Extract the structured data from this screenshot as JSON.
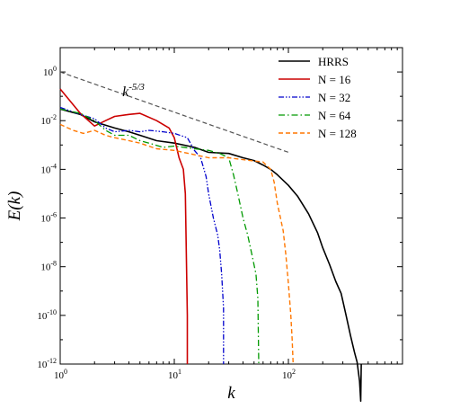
{
  "chart_data": {
    "type": "line",
    "title": "",
    "xlabel": "k",
    "ylabel": "E(k)",
    "x_scale": "log",
    "y_scale": "log",
    "xlim": [
      1,
      1000
    ],
    "ylim": [
      1e-12,
      10
    ],
    "grid": false,
    "legend_position": "top-right",
    "x_ticks": [
      {
        "value": 1,
        "base": "10",
        "exp": "0"
      },
      {
        "value": 10,
        "base": "10",
        "exp": "1"
      },
      {
        "value": 100,
        "base": "10",
        "exp": "2"
      }
    ],
    "y_ticks": [
      {
        "value": 1,
        "base": "10",
        "exp": "0"
      },
      {
        "value": 0.01,
        "base": "10",
        "exp": "-2"
      },
      {
        "value": 0.0001,
        "base": "10",
        "exp": "-4"
      },
      {
        "value": 1e-06,
        "base": "10",
        "exp": "-6"
      },
      {
        "value": 1e-08,
        "base": "10",
        "exp": "-8"
      },
      {
        "value": 1e-10,
        "base": "10",
        "exp": "-10"
      },
      {
        "value": 1e-12,
        "base": "10",
        "exp": "-12"
      }
    ],
    "annotation": {
      "base": "k",
      "exp": "-5/3",
      "x": 3.5,
      "y": 0.1
    },
    "reference_line": {
      "x": [
        1,
        100
      ],
      "y": [
        1.0,
        0.0005
      ],
      "color": "#555555",
      "dash": "5,3"
    },
    "series": [
      {
        "name": "HRRS",
        "color": "#000000",
        "dash": "",
        "width": 1.6,
        "x": [
          1,
          1.5,
          2,
          3,
          4,
          5,
          7,
          10,
          15,
          20,
          30,
          40,
          50,
          60,
          70,
          80,
          100,
          120,
          150,
          180,
          200,
          230,
          260,
          290,
          320,
          350,
          380,
          400,
          420,
          430,
          435
        ],
        "y": [
          0.03,
          0.018,
          0.009,
          0.005,
          0.0035,
          0.0025,
          0.0015,
          0.0012,
          0.0008,
          0.0005,
          0.00045,
          0.0003,
          0.00023,
          0.00015,
          0.0001,
          6e-05,
          2.2e-05,
          8e-06,
          1.5e-06,
          2.5e-07,
          6e-08,
          1.2e-08,
          2.5e-09,
          8e-10,
          1e-10,
          1.5e-11,
          3e-12,
          1.2e-12,
          2e-13,
          3e-14,
          1e-12
        ]
      },
      {
        "name": "N = 16",
        "color": "#cc0000",
        "dash": "",
        "width": 1.6,
        "x": [
          1,
          1.5,
          2,
          2.5,
          3,
          4,
          5,
          7,
          9,
          10,
          11,
          12,
          12.5,
          13,
          13
        ],
        "y": [
          0.2,
          0.02,
          0.006,
          0.01,
          0.015,
          0.018,
          0.02,
          0.01,
          0.005,
          0.002,
          0.0003,
          0.0001,
          1e-05,
          1e-10,
          1e-12
        ]
      },
      {
        "name": "N = 32",
        "color": "#0000cc",
        "dash": "6,2,1.5,2,1.5,2",
        "width": 1.3,
        "x": [
          1,
          1.5,
          2,
          2.5,
          3,
          4,
          5,
          6,
          8,
          10,
          13,
          15,
          17,
          19,
          20,
          22,
          24,
          25,
          26,
          27,
          27
        ],
        "y": [
          0.035,
          0.018,
          0.012,
          0.005,
          0.0035,
          0.004,
          0.0035,
          0.004,
          0.0035,
          0.003,
          0.002,
          0.0006,
          0.0003,
          5e-05,
          1e-05,
          1e-06,
          2e-07,
          5e-08,
          5e-09,
          2e-10,
          1e-12
        ]
      },
      {
        "name": "N = 64",
        "color": "#009900",
        "dash": "7,3,1.5,3",
        "width": 1.3,
        "x": [
          1,
          1.5,
          2,
          2.5,
          3,
          4,
          5,
          6,
          8,
          10,
          15,
          20,
          25,
          30,
          33,
          36,
          40,
          44,
          48,
          52,
          54,
          55
        ],
        "y": [
          0.03,
          0.02,
          0.01,
          0.004,
          0.0025,
          0.0025,
          0.0015,
          0.0012,
          0.0008,
          0.0009,
          0.0007,
          0.0006,
          0.00045,
          0.0003,
          6e-05,
          1e-05,
          1e-06,
          2e-07,
          3e-08,
          5e-09,
          5e-10,
          1e-12
        ]
      },
      {
        "name": "N = 128",
        "color": "#ff7700",
        "dash": "5,3",
        "width": 1.4,
        "x": [
          1,
          1.3,
          1.6,
          2,
          2.5,
          3,
          4,
          5,
          7,
          10,
          15,
          20,
          30,
          40,
          50,
          60,
          70,
          75,
          80,
          90,
          95,
          100,
          105,
          108,
          110
        ],
        "y": [
          0.007,
          0.004,
          0.003,
          0.004,
          0.0025,
          0.002,
          0.0015,
          0.0012,
          0.0007,
          0.0006,
          0.0004,
          0.0003,
          0.0003,
          0.00025,
          0.00022,
          0.0002,
          0.0001,
          3e-05,
          4e-06,
          3e-07,
          3e-08,
          2e-09,
          1e-10,
          1e-11,
          1e-12
        ]
      }
    ]
  }
}
